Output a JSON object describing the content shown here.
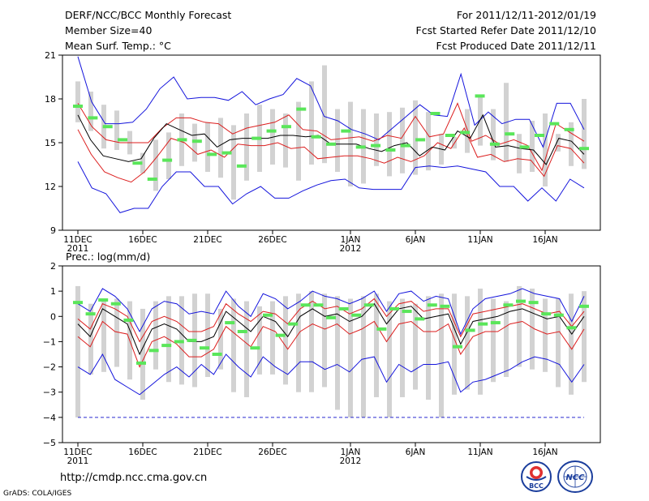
{
  "header": {
    "left": [
      "DERF/NCC/BCC Monthly Forecast",
      "Member Size=40",
      "Mean Surf. Temp.: °C"
    ],
    "right": [
      "For 2011/12/11-2012/01/19",
      "Fcst Started Refer Date 2011/12/10",
      "Fcst Produced Date 2011/12/11"
    ]
  },
  "footer": {
    "url": "http://cmdp.ncc.cma.gov.cn",
    "credit": "GrADS: COLA/IGES",
    "logo_left_text": "BCC",
    "logo_right_text": "NCC"
  },
  "colors": {
    "box": "#d2d2d2",
    "obs": "#5ae65a",
    "mean": "#000000",
    "spread": "#dc1e1e",
    "envelope": "#1414dc",
    "dash": "#2a2ad0"
  },
  "chart_data": [
    {
      "type": "box-whisker-line",
      "title": "Mean Surf. Temp.: °C",
      "ylim": [
        9,
        21
      ],
      "yticks": [
        9,
        12,
        15,
        18,
        21
      ],
      "x_tick_positions": [
        0,
        5,
        10,
        15,
        21,
        26,
        31,
        36
      ],
      "x_tick_labels": [
        "11DEC",
        "16DEC",
        "21DEC",
        "26DEC",
        "1JAN",
        "6JAN",
        "11JAN",
        "16JAN"
      ],
      "x_year_labels": [
        {
          "at": 0,
          "text": "2011"
        },
        {
          "at": 21,
          "text": "2012"
        }
      ],
      "box_low": [
        16.4,
        15.8,
        14.6,
        14.5,
        14.2,
        12.9,
        11.7,
        12.5,
        13.4,
        13.7,
        13.0,
        12.6,
        11.1,
        12.4,
        13.0,
        13.5,
        13.3,
        12.4,
        13.5,
        13.6,
        13.0,
        12.0,
        12.2,
        13.4,
        12.7,
        12.9,
        12.8,
        13.1,
        13.5,
        14.6,
        14.3,
        14.8,
        13.8,
        13.7,
        12.9,
        13.0,
        12.0,
        14.4,
        13.4,
        13.2
      ],
      "box_high": [
        19.2,
        18.5,
        17.6,
        17.2,
        15.8,
        14.3,
        15.2,
        15.7,
        17.0,
        16.3,
        16.4,
        16.7,
        16.2,
        17.0,
        17.6,
        17.3,
        17.0,
        17.8,
        19.2,
        20.3,
        17.3,
        17.8,
        17.3,
        17.0,
        17.1,
        17.4,
        17.9,
        17.1,
        15.6,
        15.4,
        17.3,
        18.3,
        17.3,
        19.1,
        15.6,
        16.5,
        17.0,
        15.6,
        16.4,
        18.0,
        17.0,
        16.7
      ],
      "obs": [
        17.5,
        16.7,
        16.1,
        15.2,
        13.6,
        12.5,
        13.8,
        15.2,
        15.1,
        14.2,
        14.3,
        13.4,
        15.3,
        15.8,
        16.1,
        17.3,
        15.4,
        14.9,
        15.8,
        14.7,
        14.8,
        14.5,
        14.8,
        15.2,
        17.0,
        15.5,
        15.7,
        18.2,
        14.9,
        15.6,
        14.7,
        15.5,
        16.3,
        15.9,
        14.6
      ],
      "mean": [
        16.9,
        15.2,
        14.1,
        13.9,
        13.7,
        13.9,
        15.3,
        16.3,
        15.9,
        15.5,
        15.6,
        14.7,
        15.2,
        15.3,
        15.3,
        15.3,
        15.5,
        15.5,
        15.4,
        15.5,
        14.9,
        14.9,
        14.9,
        14.6,
        14.4,
        14.8,
        15.0,
        14.1,
        14.7,
        14.5,
        15.8,
        15.3,
        16.9,
        14.7,
        14.8,
        14.6,
        14.5,
        13.5,
        15.3,
        15.1,
        14.2
      ],
      "spread_low": [
        15.9,
        14.2,
        13.0,
        12.6,
        12.3,
        13.0,
        14.1,
        15.3,
        15.0,
        14.2,
        14.5,
        14.0,
        14.9,
        14.8,
        14.8,
        15.0,
        14.6,
        14.7,
        13.9,
        14.0,
        14.1,
        14.1,
        13.9,
        13.6,
        14.0,
        13.7,
        14.1,
        15.0,
        14.6,
        16.0,
        14.0,
        14.2,
        13.7,
        13.9,
        13.8,
        12.7,
        14.8,
        14.6,
        13.6
      ],
      "spread_high": [
        17.7,
        16.1,
        15.2,
        15.0,
        15.0,
        15.0,
        16.0,
        16.7,
        16.7,
        16.4,
        16.3,
        15.6,
        16.0,
        16.2,
        16.4,
        16.9,
        15.9,
        15.8,
        15.2,
        15.3,
        15.4,
        15.1,
        15.5,
        15.3,
        16.8,
        15.4,
        15.6,
        17.7,
        15.1,
        15.5,
        14.9,
        15.2,
        14.8,
        13.1,
        16.3,
        15.7,
        15.1
      ],
      "env_low": [
        13.7,
        11.9,
        11.5,
        10.2,
        10.5,
        10.5,
        12.0,
        13.0,
        13.0,
        12.0,
        12.0,
        10.8,
        11.5,
        12.0,
        11.2,
        11.2,
        11.7,
        12.1,
        12.4,
        12.5,
        11.9,
        11.8,
        11.8,
        11.8,
        13.3,
        13.4,
        13.3,
        13.4,
        13.2,
        13.0,
        12.0,
        12.0,
        11.0,
        11.9,
        11.0,
        12.5,
        11.9
      ],
      "env_high": [
        20.9,
        17.8,
        16.3,
        16.3,
        16.4,
        17.3,
        18.7,
        19.5,
        18.0,
        18.1,
        18.1,
        17.9,
        18.5,
        17.6,
        18.0,
        18.3,
        19.4,
        18.9,
        16.8,
        16.5,
        15.9,
        15.6,
        15.2,
        16.0,
        16.8,
        17.6,
        16.9,
        16.8,
        19.7,
        16.2,
        17.1,
        16.3,
        16.6,
        16.6,
        14.7,
        17.7,
        17.7,
        15.9
      ]
    },
    {
      "type": "box-whisker-line",
      "title": "Prec.: log(mm/d)",
      "ylim": [
        -5,
        2
      ],
      "yticks": [
        -5,
        -4,
        -3,
        -2,
        -1,
        0,
        1,
        2
      ],
      "x_tick_positions": [
        0,
        5,
        10,
        15,
        21,
        26,
        31,
        36
      ],
      "x_tick_labels": [
        "11DEC",
        "16DEC",
        "21DEC",
        "26DEC",
        "1JAN",
        "6JAN",
        "11JAN",
        "16JAN"
      ],
      "x_year_labels": [
        {
          "at": 0,
          "text": "2011"
        },
        {
          "at": 21,
          "text": "2012"
        }
      ],
      "box_low": [
        -4.0,
        -2.3,
        -2.2,
        -2.0,
        -2.5,
        -3.3,
        -2.1,
        -2.6,
        -2.7,
        -2.8,
        -2.4,
        -2.1,
        -3.0,
        -3.2,
        -2.3,
        -2.3,
        -2.7,
        -3.0,
        -3.0,
        -2.8,
        -3.7,
        -4.0,
        -4.0,
        -3.2,
        -4.0,
        -3.2,
        -2.9,
        -3.3,
        -4.0,
        -3.1,
        -2.9,
        -3.1,
        -2.6,
        -2.4,
        -2.0,
        -2.1,
        -2.2,
        -2.8,
        -3.1,
        -2.6
      ],
      "box_high": [
        1.2,
        0.5,
        0.6,
        0.7,
        0.6,
        0.3,
        0.6,
        0.8,
        0.8,
        0.9,
        0.9,
        0.3,
        0.7,
        0.6,
        0.4,
        0.6,
        0.8,
        0.9,
        1.0,
        0.9,
        0.8,
        0.7,
        0.8,
        0.9,
        0.6,
        0.7,
        0.5,
        0.8,
        0.9,
        0.9,
        0.8,
        1.1,
        0.7,
        0.6,
        1.2,
        1.1,
        0.7,
        0.7,
        0.9,
        1.0
      ],
      "obs": [
        0.55,
        0.1,
        0.65,
        0.5,
        -0.15,
        -1.85,
        -1.35,
        -1.15,
        -1.0,
        -0.95,
        -1.25,
        -1.5,
        -0.25,
        -0.6,
        -1.25,
        0.05,
        -0.75,
        -0.3,
        0.45,
        0.45,
        -0.05,
        0.3,
        0.05,
        0.45,
        -0.5,
        0.3,
        0.2,
        -0.1,
        0.45,
        0.4,
        -1.2,
        -0.55,
        -0.3,
        -0.25,
        0.45,
        0.6,
        0.55,
        0.1,
        0.05,
        -0.45,
        0.4
      ],
      "mean": [
        -0.3,
        -0.8,
        0.3,
        0.0,
        -0.3,
        -1.5,
        -0.5,
        -0.3,
        -0.5,
        -1.0,
        -1.0,
        -0.8,
        0.2,
        -0.2,
        -0.6,
        0.0,
        -0.2,
        -0.8,
        0.0,
        0.3,
        0.0,
        0.1,
        -0.2,
        0.0,
        0.5,
        -0.3,
        0.3,
        0.4,
        -0.1,
        0.0,
        0.1,
        -1.1,
        -0.2,
        -0.1,
        0.0,
        0.2,
        0.3,
        0.1,
        -0.1,
        0.0,
        -0.7,
        0.0
      ],
      "spread_low": [
        -0.8,
        -1.2,
        -0.2,
        -0.6,
        -0.7,
        -2.0,
        -1.0,
        -0.8,
        -1.1,
        -1.6,
        -1.6,
        -1.3,
        -0.4,
        -0.8,
        -1.2,
        -0.4,
        -0.6,
        -1.3,
        -0.6,
        -0.3,
        -0.5,
        -0.3,
        -0.7,
        -0.5,
        -0.2,
        -1.0,
        -0.3,
        -0.2,
        -0.6,
        -0.6,
        -0.3,
        -1.5,
        -0.8,
        -0.6,
        -0.6,
        -0.3,
        -0.2,
        -0.5,
        -0.7,
        -0.6,
        -1.3,
        -0.5
      ],
      "spread_high": [
        -0.1,
        -0.5,
        0.5,
        0.3,
        0.0,
        -1.0,
        -0.2,
        0.0,
        -0.2,
        -0.6,
        -0.6,
        -0.4,
        0.5,
        0.1,
        -0.2,
        0.2,
        0.1,
        -0.3,
        0.3,
        0.6,
        0.3,
        0.4,
        0.1,
        0.3,
        0.7,
        0.0,
        0.5,
        0.6,
        0.2,
        0.3,
        0.3,
        -0.8,
        0.1,
        0.2,
        0.3,
        0.4,
        0.5,
        0.3,
        0.1,
        0.2,
        -0.4,
        0.2
      ],
      "env_low": [
        -2.0,
        -2.3,
        -1.5,
        -2.5,
        -2.8,
        -3.1,
        -2.7,
        -2.3,
        -2.0,
        -2.4,
        -1.9,
        -2.3,
        -1.5,
        -2.0,
        -2.4,
        -1.6,
        -2.0,
        -2.3,
        -1.8,
        -1.8,
        -2.1,
        -1.9,
        -2.2,
        -1.7,
        -1.6,
        -2.6,
        -1.9,
        -2.2,
        -1.9,
        -1.9,
        -1.8,
        -3.0,
        -2.6,
        -2.5,
        -2.3,
        -2.1,
        -1.8,
        -1.6,
        -1.7,
        -1.9,
        -2.6,
        -1.9
      ],
      "env_high": [
        0.5,
        0.2,
        1.1,
        0.8,
        0.3,
        -0.6,
        0.3,
        0.6,
        0.5,
        0.1,
        0.2,
        0.1,
        1.0,
        0.4,
        0.0,
        0.9,
        0.7,
        0.3,
        0.6,
        1.0,
        0.8,
        0.7,
        0.5,
        0.7,
        1.0,
        0.2,
        0.9,
        1.0,
        0.6,
        0.8,
        0.7,
        -0.7,
        0.3,
        0.7,
        0.8,
        0.9,
        1.1,
        0.9,
        0.8,
        0.7,
        -0.2,
        0.8
      ],
      "dashed_level": -4
    }
  ]
}
